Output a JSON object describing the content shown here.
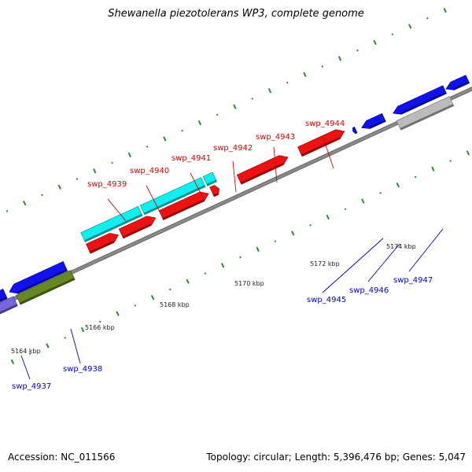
{
  "title": "Shewanella piezotolerans WP3, complete genome",
  "accession": "Accession: NC_011566",
  "summary": "Topology: circular; Length: 5,396,476 bp; Genes: 5,047",
  "colors": {
    "backbone": "#8a8a8a",
    "tick": "#2e8b2e",
    "label_top": "#dd0000",
    "label_bottom": "#0000cc",
    "red": "#ee1111",
    "cyan": "#11eeee",
    "blue": "#1111ee",
    "purple": "#7766dd",
    "olive": "#668822",
    "gray": "#bbbbbb"
  },
  "ticks": [
    {
      "label": "5164 kbp"
    },
    {
      "label": "5166 kbp"
    },
    {
      "label": "5168 kbp"
    },
    {
      "label": "5170 kbp"
    },
    {
      "label": "5172 kbp"
    },
    {
      "label": "5174 kbp"
    }
  ],
  "genes_top": [
    {
      "label": "swp_4939"
    },
    {
      "label": "swp_4940"
    },
    {
      "label": "swp_4941"
    },
    {
      "label": "swp_4942"
    },
    {
      "label": "swp_4943"
    },
    {
      "label": "swp_4944"
    }
  ],
  "genes_bottom": [
    {
      "label": "swp_4937"
    },
    {
      "label": "swp_4938"
    },
    {
      "label": "swp_4945"
    },
    {
      "label": "swp_4946"
    },
    {
      "label": "swp_4947"
    }
  ]
}
